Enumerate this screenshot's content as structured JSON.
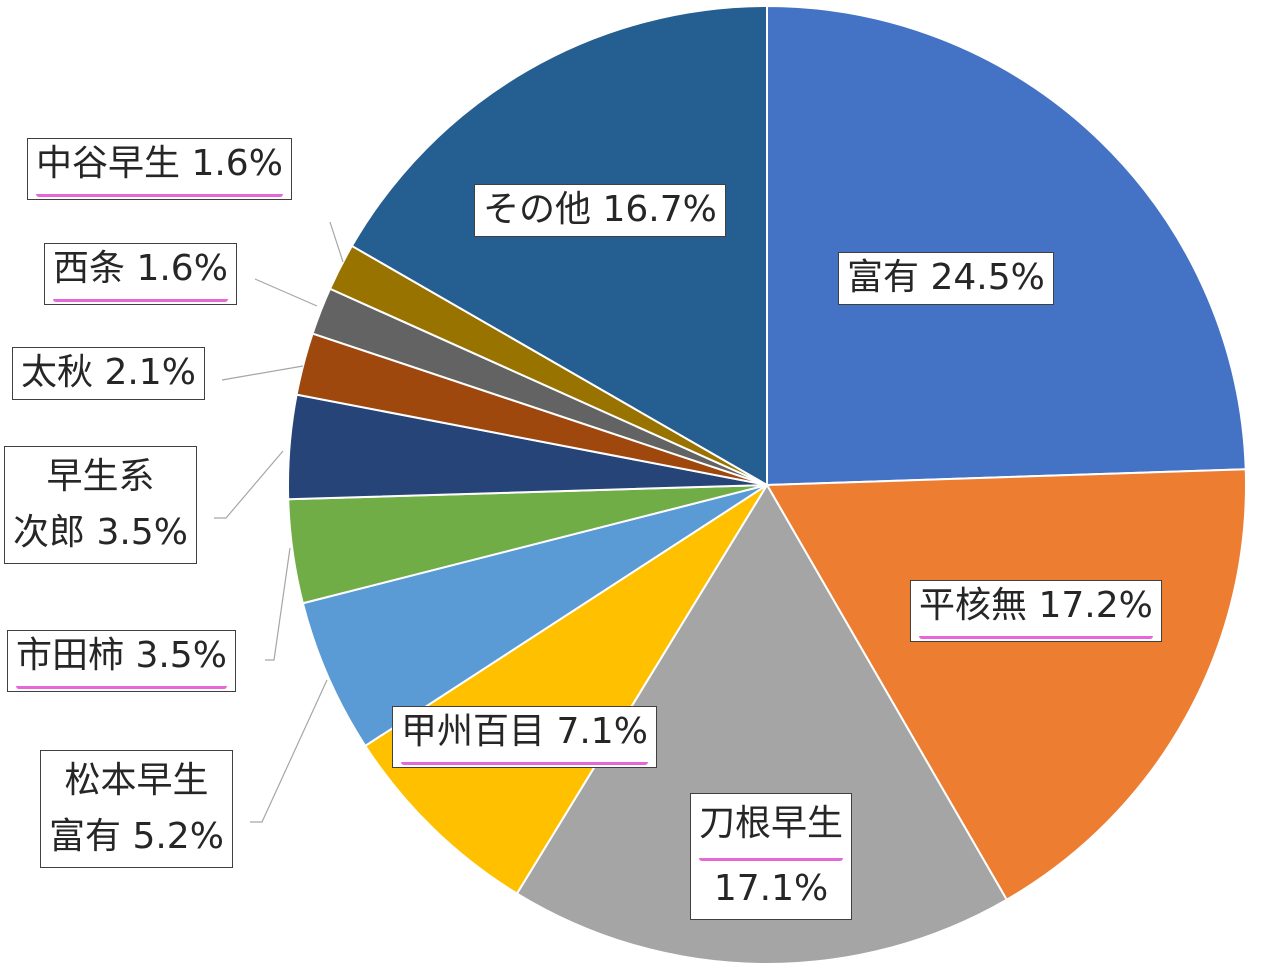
{
  "chart_data": {
    "type": "pie",
    "start_angle_deg": 0,
    "direction": "clockwise",
    "slices": [
      {
        "name": "富有",
        "value": 24.5,
        "label": "富有 24.5%",
        "color": "#4472C4",
        "underline": false
      },
      {
        "name": "平核無",
        "value": 17.2,
        "label": "平核無 17.2%",
        "color": "#ED7D31",
        "underline": true
      },
      {
        "name": "刀根早生",
        "value": 17.1,
        "label_lines": [
          "刀根早生",
          "17.1%"
        ],
        "color": "#A5A5A5",
        "underline": true
      },
      {
        "name": "甲州百目",
        "value": 7.1,
        "label": "甲州百目 7.1%",
        "color": "#FFC000",
        "underline": true
      },
      {
        "name": "松本早生富有",
        "value": 5.2,
        "label_lines": [
          "松本早生",
          "富有 5.2%"
        ],
        "color": "#5B9BD5",
        "underline": false
      },
      {
        "name": "市田柿",
        "value": 3.5,
        "label": "市田柿 3.5%",
        "color": "#70AD47",
        "underline": true
      },
      {
        "name": "早生系次郎",
        "value": 3.5,
        "label_lines": [
          "早生系",
          "次郎 3.5%"
        ],
        "color": "#264478",
        "underline": false
      },
      {
        "name": "太秋",
        "value": 2.1,
        "label": "太秋 2.1%",
        "color": "#9E480E",
        "underline": false
      },
      {
        "name": "西条",
        "value": 1.6,
        "label": "西条 1.6%",
        "color": "#636363",
        "underline": true
      },
      {
        "name": "中谷早生",
        "value": 1.6,
        "label": "中谷早生 1.6%",
        "color": "#997300",
        "underline": true
      },
      {
        "name": "その他",
        "value": 16.7,
        "label": "その他 16.7%",
        "color": "#255E91",
        "underline": false
      }
    ]
  }
}
